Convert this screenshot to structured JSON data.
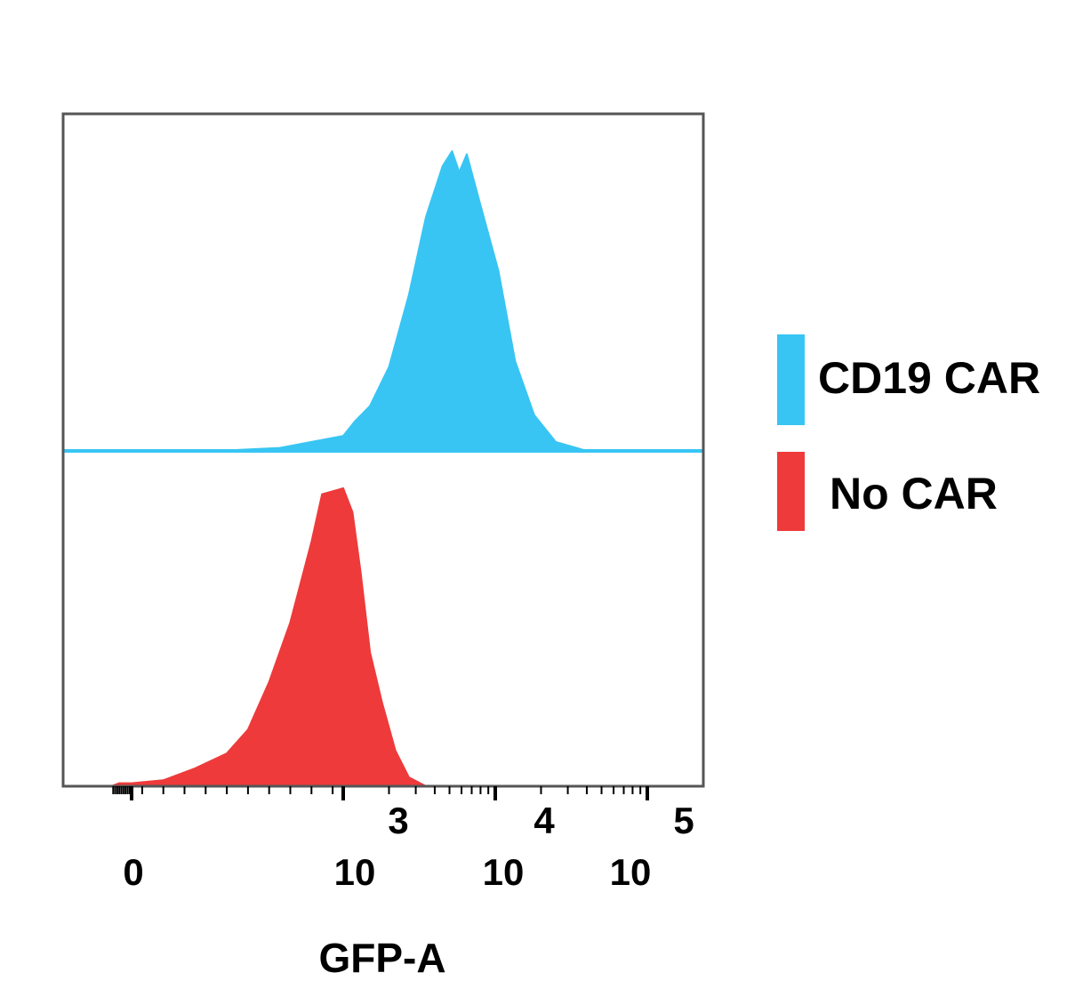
{
  "chart_data": {
    "type": "histogram",
    "xlabel": "GFP-A",
    "x_scale": "biexponential",
    "x_ticks": [
      {
        "value": 0,
        "base": "0",
        "exponent": ""
      },
      {
        "value": 1000,
        "base": "10",
        "exponent": "3"
      },
      {
        "value": 10000,
        "base": "10",
        "exponent": "4"
      },
      {
        "value": 100000,
        "base": "10",
        "exponent": "5"
      }
    ],
    "legend_position": "right",
    "series": [
      {
        "name": "CD19 CAR",
        "color": "#38c5f3",
        "panel": "top",
        "peak_normalized_x": [
          [
            -500,
            0.0
          ],
          [
            0,
            0.0
          ],
          [
            400,
            0.0
          ],
          [
            700,
            0.01
          ],
          [
            1000,
            0.05
          ],
          [
            1200,
            0.1
          ],
          [
            1500,
            0.15
          ],
          [
            2000,
            0.28
          ],
          [
            2700,
            0.52
          ],
          [
            3500,
            0.78
          ],
          [
            4500,
            0.95
          ],
          [
            5200,
            1.0
          ],
          [
            5800,
            0.93
          ],
          [
            6500,
            0.99
          ],
          [
            8000,
            0.82
          ],
          [
            10500,
            0.6
          ],
          [
            13500,
            0.3
          ],
          [
            18000,
            0.12
          ],
          [
            25000,
            0.03
          ],
          [
            40000,
            0.0
          ],
          [
            100000,
            0.0
          ]
        ]
      },
      {
        "name": "No CAR",
        "color": "#ee3a3a",
        "panel": "bottom",
        "peak_normalized_x": [
          [
            -500,
            0.0
          ],
          [
            -300,
            0.01
          ],
          [
            0,
            0.01
          ],
          [
            150,
            0.02
          ],
          [
            300,
            0.06
          ],
          [
            450,
            0.11
          ],
          [
            550,
            0.19
          ],
          [
            650,
            0.35
          ],
          [
            750,
            0.55
          ],
          [
            850,
            0.82
          ],
          [
            900,
            0.98
          ],
          [
            1000,
            1.0
          ],
          [
            1150,
            0.92
          ],
          [
            1300,
            0.72
          ],
          [
            1500,
            0.45
          ],
          [
            1800,
            0.28
          ],
          [
            2200,
            0.12
          ],
          [
            2700,
            0.03
          ],
          [
            3500,
            0.0
          ],
          [
            100000,
            0.0
          ]
        ]
      }
    ]
  }
}
